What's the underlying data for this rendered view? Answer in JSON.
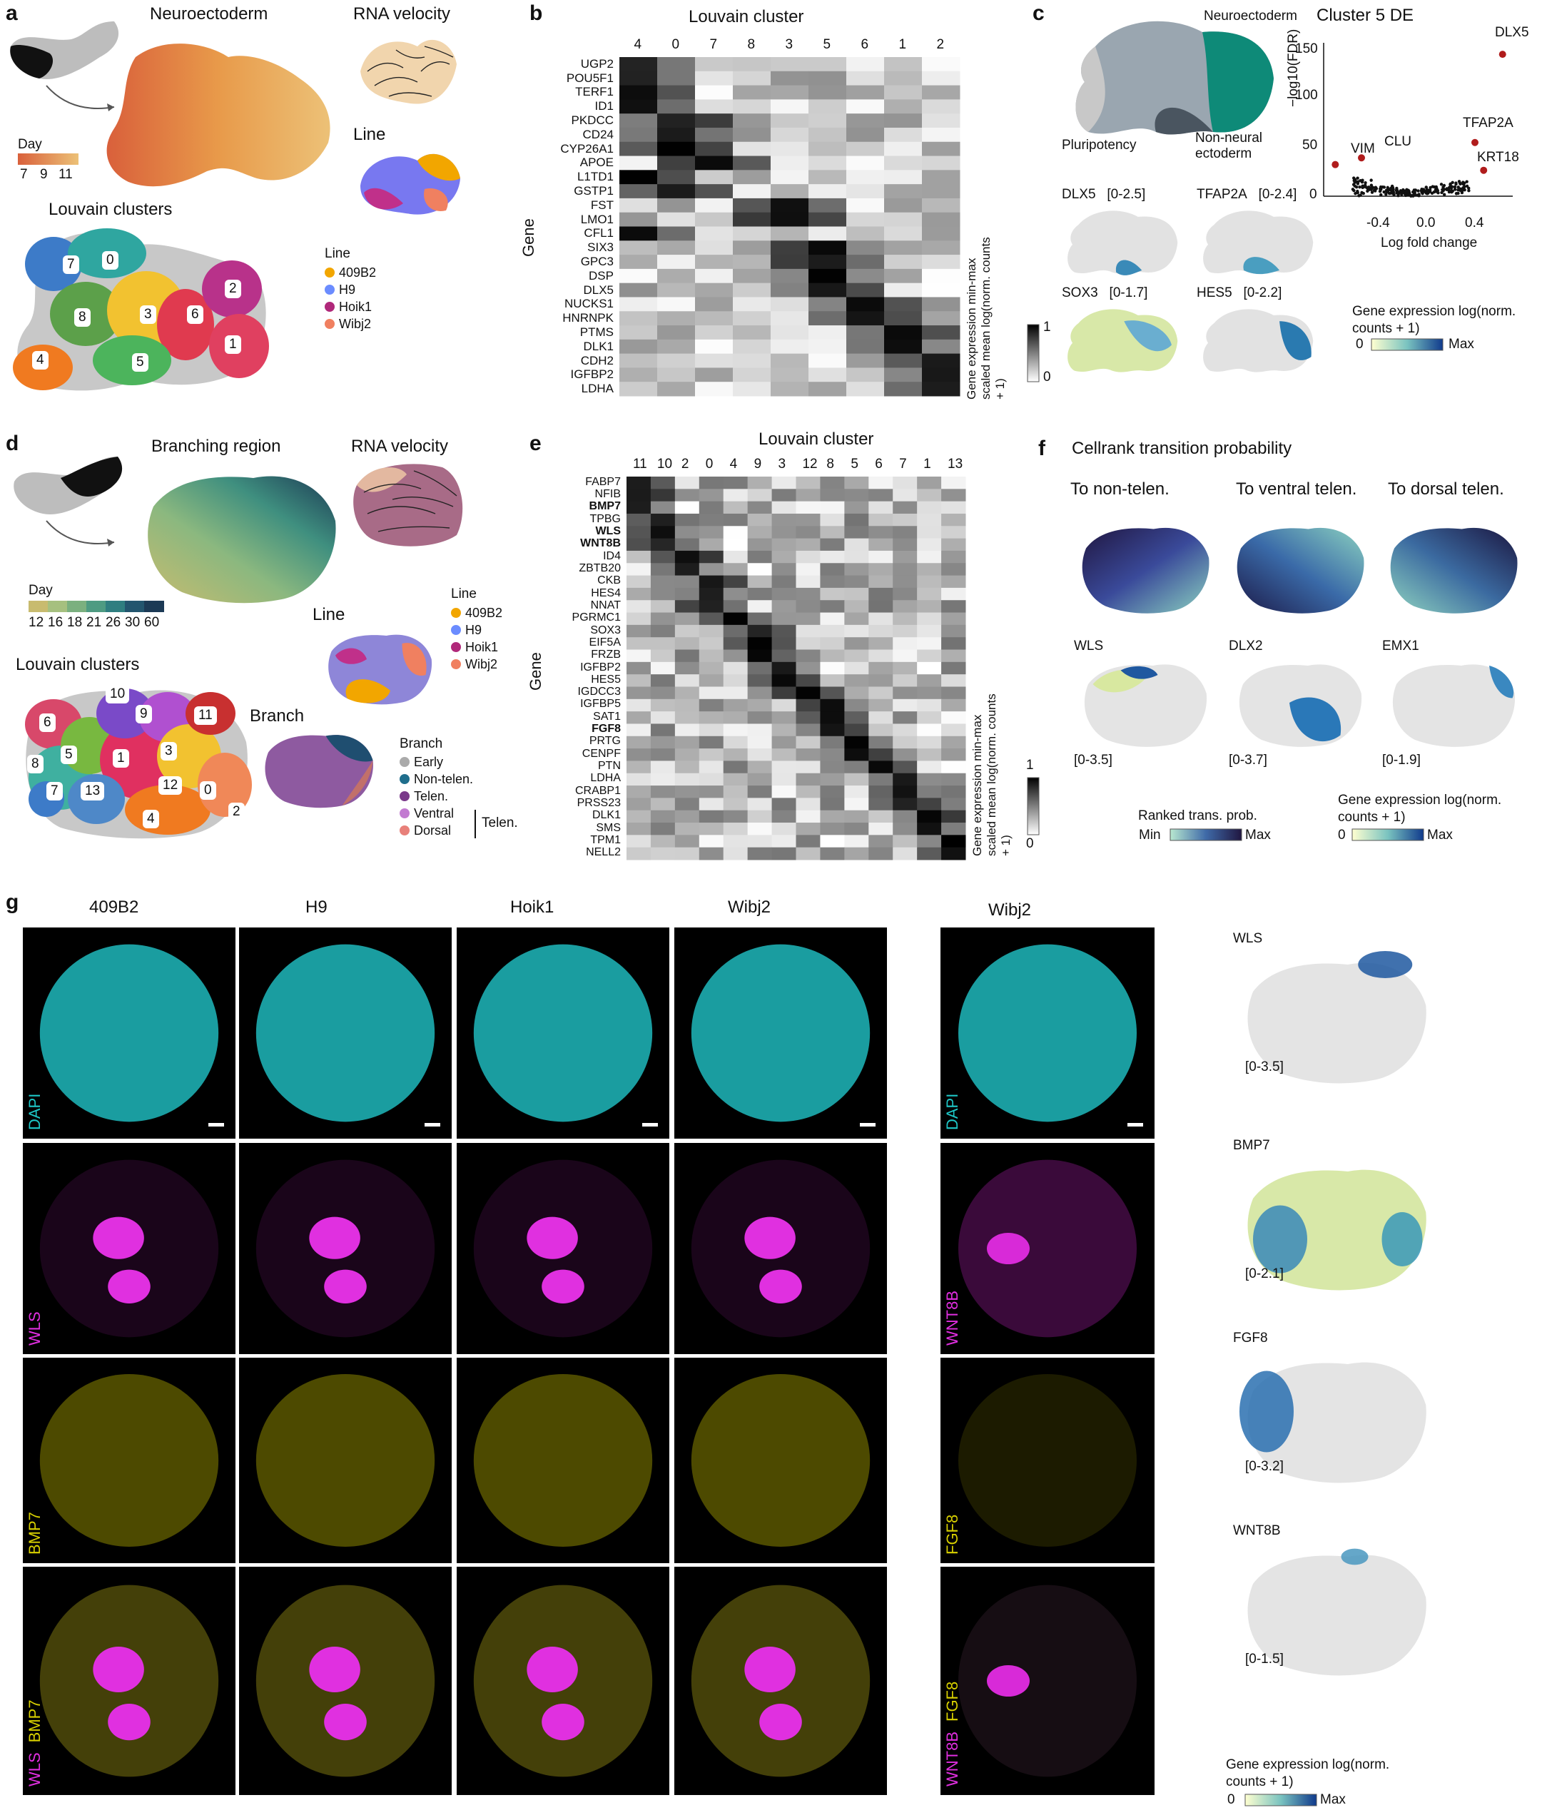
{
  "panels": {
    "a": {
      "label": "a",
      "title_neuro": "Neuroectoderm",
      "title_velocity": "RNA velocity",
      "title_line": "Line",
      "title_louvain": "Louvain clusters",
      "day_label": "Day",
      "day_ticks": [
        "7",
        "9",
        "11"
      ],
      "line_legend_title": "Line",
      "line_legend": [
        {
          "name": "409B2",
          "color": "#f2a600"
        },
        {
          "name": "H9",
          "color": "#6b8cff"
        },
        {
          "name": "Hoik1",
          "color": "#b0287a"
        },
        {
          "name": "Wibj2",
          "color": "#f08060"
        }
      ],
      "clusters": [
        "7",
        "0",
        "8",
        "3",
        "6",
        "2",
        "1",
        "4",
        "5"
      ]
    },
    "b": {
      "label": "b",
      "title": "Louvain cluster",
      "ylabel": "Gene",
      "colorbar_title": "Gene expression min-max scaled mean log(norm. counts + 1)",
      "colorbar_max": "1",
      "colorbar_min": "0",
      "columns": [
        "4",
        "0",
        "7",
        "8",
        "3",
        "5",
        "6",
        "1",
        "2"
      ],
      "genes": [
        "UGP2",
        "POU5F1",
        "TERF1",
        "ID1",
        "PKDCC",
        "CD24",
        "CYP26A1",
        "APOE",
        "L1TD1",
        "GSTP1",
        "FST",
        "LMO1",
        "CFL1",
        "SIX3",
        "GPC3",
        "DSP",
        "DLX5",
        "NUCKS1",
        "HNRNPK",
        "PTMS",
        "DLK1",
        "CDH2",
        "IGFBP2",
        "LDHA"
      ]
    },
    "c": {
      "label": "c",
      "umap_labels": {
        "neuro": "Neuroectoderm",
        "pluri": "Pluripotency",
        "nonneural": "Non-neural ectoderm"
      },
      "genes": [
        {
          "name": "DLX5",
          "range": "[0-2.5]"
        },
        {
          "name": "TFAP2A",
          "range": "[0-2.4]"
        },
        {
          "name": "SOX3",
          "range": "[0-1.7]"
        },
        {
          "name": "HES5",
          "range": "[0-2.2]"
        }
      ],
      "volcano_title": "Cluster 5 DE",
      "volcano_ylabel": "−log10(FDR)",
      "volcano_xlabel": "Log fold change",
      "volcano_yticks": [
        "0",
        "50",
        "100",
        "150"
      ],
      "volcano_xticks": [
        "-0.4",
        "0.0",
        "0.4"
      ],
      "volcano_highlights": [
        "DLX5",
        "TFAP2A",
        "KRT18",
        "VIM",
        "CLU"
      ],
      "colorbar_title": "Gene expression log(norm. counts + 1)",
      "colorbar_min": "0",
      "colorbar_max": "Max"
    },
    "d": {
      "label": "d",
      "title_branch": "Branching region",
      "title_velocity": "RNA velocity",
      "day_ticks": [
        "12",
        "16",
        "18",
        "21",
        "26",
        "30",
        "60"
      ],
      "day_label": "Day",
      "line_title": "Line",
      "line_legend_title": "Line",
      "line_legend": [
        {
          "name": "409B2",
          "color": "#f2a600"
        },
        {
          "name": "H9",
          "color": "#6b8cff"
        },
        {
          "name": "Hoik1",
          "color": "#b0287a"
        },
        {
          "name": "Wibj2",
          "color": "#f08060"
        }
      ],
      "louvain_title": "Louvain clusters",
      "branch_title": "Branch",
      "branch_legend_title": "Branch",
      "branch_legend": [
        {
          "name": "Early",
          "color": "#aaaaaa"
        },
        {
          "name": "Non-telen.",
          "color": "#1f6e8c"
        },
        {
          "name": "Telen.",
          "color": "#7a3a8a"
        },
        {
          "name": "Ventral",
          "color": "#c27bd1"
        },
        {
          "name": "Dorsal",
          "color": "#e8807a"
        }
      ],
      "telen_bracket": "Telen.",
      "clusters": [
        "10",
        "9",
        "11",
        "6",
        "8",
        "5",
        "1",
        "3",
        "7",
        "13",
        "12",
        "0",
        "2",
        "4"
      ]
    },
    "e": {
      "label": "e",
      "title": "Louvain cluster",
      "ylabel": "Gene",
      "colorbar_title": "Gene expression min-max scaled mean log(norm. counts + 1)",
      "colorbar_max": "1",
      "colorbar_min": "0",
      "columns": [
        "11",
        "10",
        "2",
        "0",
        "4",
        "9",
        "3",
        "12",
        "8",
        "5",
        "6",
        "7",
        "1",
        "13"
      ],
      "genes": [
        "FABP7",
        "NFIB",
        "BMP7",
        "TPBG",
        "WLS",
        "WNT8B",
        "ID4",
        "ZBTB20",
        "CKB",
        "HES4",
        "NNAT",
        "PGRMC1",
        "SOX3",
        "EIF5A",
        "FRZB",
        "IGFBP2",
        "HES5",
        "IGDCC3",
        "IGFBP5",
        "SAT1",
        "FGF8",
        "PRTG",
        "CENPF",
        "PTN",
        "LDHA",
        "CRABP1",
        "PRSS23",
        "DLK1",
        "SMS",
        "TPM1",
        "NELL2"
      ],
      "bold_genes": [
        "BMP7",
        "WLS",
        "WNT8B",
        "FGF8"
      ]
    },
    "f": {
      "label": "f",
      "title": "Cellrank transition probability",
      "targets": [
        "To non-telen.",
        "To ventral telen.",
        "To dorsal telen."
      ],
      "genes": [
        {
          "name": "WLS",
          "range": "[0-3.5]"
        },
        {
          "name": "DLX2",
          "range": "[0-3.7]"
        },
        {
          "name": "EMX1",
          "range": "[0-1.9]"
        }
      ],
      "rank_title": "Ranked trans. prob.",
      "rank_min": "Min",
      "rank_max": "Max",
      "expr_title": "Gene expression log(norm. counts + 1)",
      "expr_min": "0",
      "expr_max": "Max"
    },
    "g": {
      "label": "g",
      "columns": [
        "409B2",
        "H9",
        "Hoik1",
        "Wibj2"
      ],
      "side_column": "Wibj2",
      "row_labels": [
        "DAPI",
        "WLS",
        "BMP7",
        "BMP7"
      ],
      "overlay_label_a": "WLS",
      "side_row_labels": [
        "DAPI",
        "WNT8B",
        "FGF8",
        "FGF8"
      ],
      "side_overlay_label_a": "WNT8B",
      "feature_plots": [
        {
          "name": "WLS",
          "range": "[0-3.5]"
        },
        {
          "name": "BMP7",
          "range": "[0-2.1]"
        },
        {
          "name": "FGF8",
          "range": "[0-3.2]"
        },
        {
          "name": "WNT8B",
          "range": "[0-1.5]"
        }
      ],
      "colorbar_title": "Gene expression log(norm. counts + 1)",
      "colorbar_min": "0",
      "colorbar_max": "Max"
    }
  },
  "colors": {
    "dapi": "#1ec8c8",
    "magenta": "#e02ee0",
    "yellow": "#d8d000",
    "teal_cluster": "#0e7f6e",
    "viridis_dark": "#2b1b5e"
  }
}
